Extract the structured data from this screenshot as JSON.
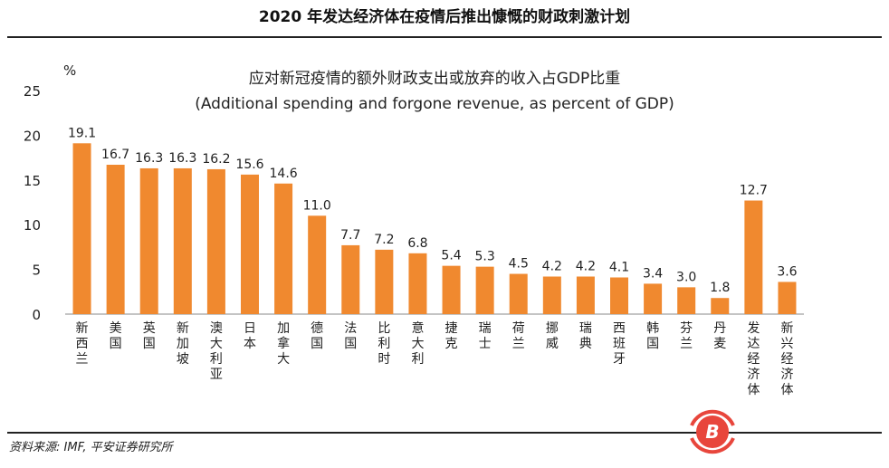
{
  "title": "2020 年发达经济体在疫情后推出慷慨的财政刺激计划",
  "source": "资料来源: IMF, 平安证券研究所",
  "chart_data": {
    "type": "bar",
    "title": "应对新冠疫情的额外财政支出或放弃的收入占GDP比重",
    "subtitle": "(Additional spending and forgone revenue, as percent of GDP)",
    "ylabel": "%",
    "ylim": [
      0,
      25
    ],
    "yticks": [
      0,
      5,
      10,
      15,
      20,
      25
    ],
    "grid": false,
    "bar_color": "#F0892F",
    "categories": [
      "新西兰",
      "美国",
      "英国",
      "新加坡",
      "澳大利亚",
      "日本",
      "加拿大",
      "德国",
      "法国",
      "比利时",
      "意大利",
      "捷克",
      "瑞士",
      "荷兰",
      "挪威",
      "瑞典",
      "西班牙",
      "韩国",
      "芬兰",
      "丹麦",
      "发达经济体",
      "新兴经济体"
    ],
    "values": [
      19.1,
      16.7,
      16.3,
      16.3,
      16.2,
      15.6,
      14.6,
      11.0,
      7.7,
      7.2,
      6.8,
      5.4,
      5.3,
      4.5,
      4.2,
      4.2,
      4.1,
      3.4,
      3.0,
      1.8,
      12.7,
      3.6
    ],
    "data_labels": [
      "19.1",
      "16.7",
      "16.3",
      "16.3",
      "16.2",
      "15.6",
      "14.6",
      "11.0",
      "7.7",
      "7.2",
      "6.8",
      "5.4",
      "5.3",
      "4.5",
      "4.2",
      "4.2",
      "4.1",
      "3.4",
      "3.0",
      "1.8",
      "12.7",
      "3.6"
    ]
  }
}
